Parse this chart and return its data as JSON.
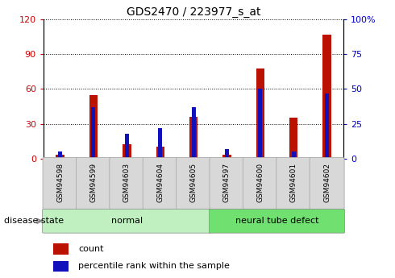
{
  "title": "GDS2470 / 223977_s_at",
  "samples": [
    "GSM94598",
    "GSM94599",
    "GSM94603",
    "GSM94604",
    "GSM94605",
    "GSM94597",
    "GSM94600",
    "GSM94601",
    "GSM94602"
  ],
  "count_values": [
    3,
    55,
    12,
    10,
    36,
    3,
    78,
    35,
    107
  ],
  "percentile_values": [
    5,
    37,
    18,
    22,
    37,
    7,
    50,
    5,
    47
  ],
  "groups": [
    {
      "label": "normal",
      "start": 0,
      "end": 4,
      "color": "#c0f0c0"
    },
    {
      "label": "neural tube defect",
      "start": 5,
      "end": 8,
      "color": "#70e070"
    }
  ],
  "ylim_left": [
    0,
    120
  ],
  "ylim_right": [
    0,
    100
  ],
  "yticks_left": [
    0,
    30,
    60,
    90,
    120
  ],
  "ytick_labels_left": [
    "0",
    "30",
    "60",
    "90",
    "120"
  ],
  "yticks_right": [
    0,
    25,
    50,
    75,
    100
  ],
  "ytick_labels_right": [
    "0",
    "25",
    "50",
    "75",
    "100%"
  ],
  "bar_color_red": "#bb1100",
  "bar_color_blue": "#1111bb",
  "red_bar_width": 0.25,
  "blue_bar_width": 0.12,
  "label_count": "count",
  "label_percentile": "percentile rank within the sample",
  "disease_state_label": "disease state",
  "left_tick_color": "#cc0000",
  "right_tick_color": "#0000cc",
  "tickbox_color": "#d8d8d8",
  "tickbox_edge": "#aaaaaa"
}
